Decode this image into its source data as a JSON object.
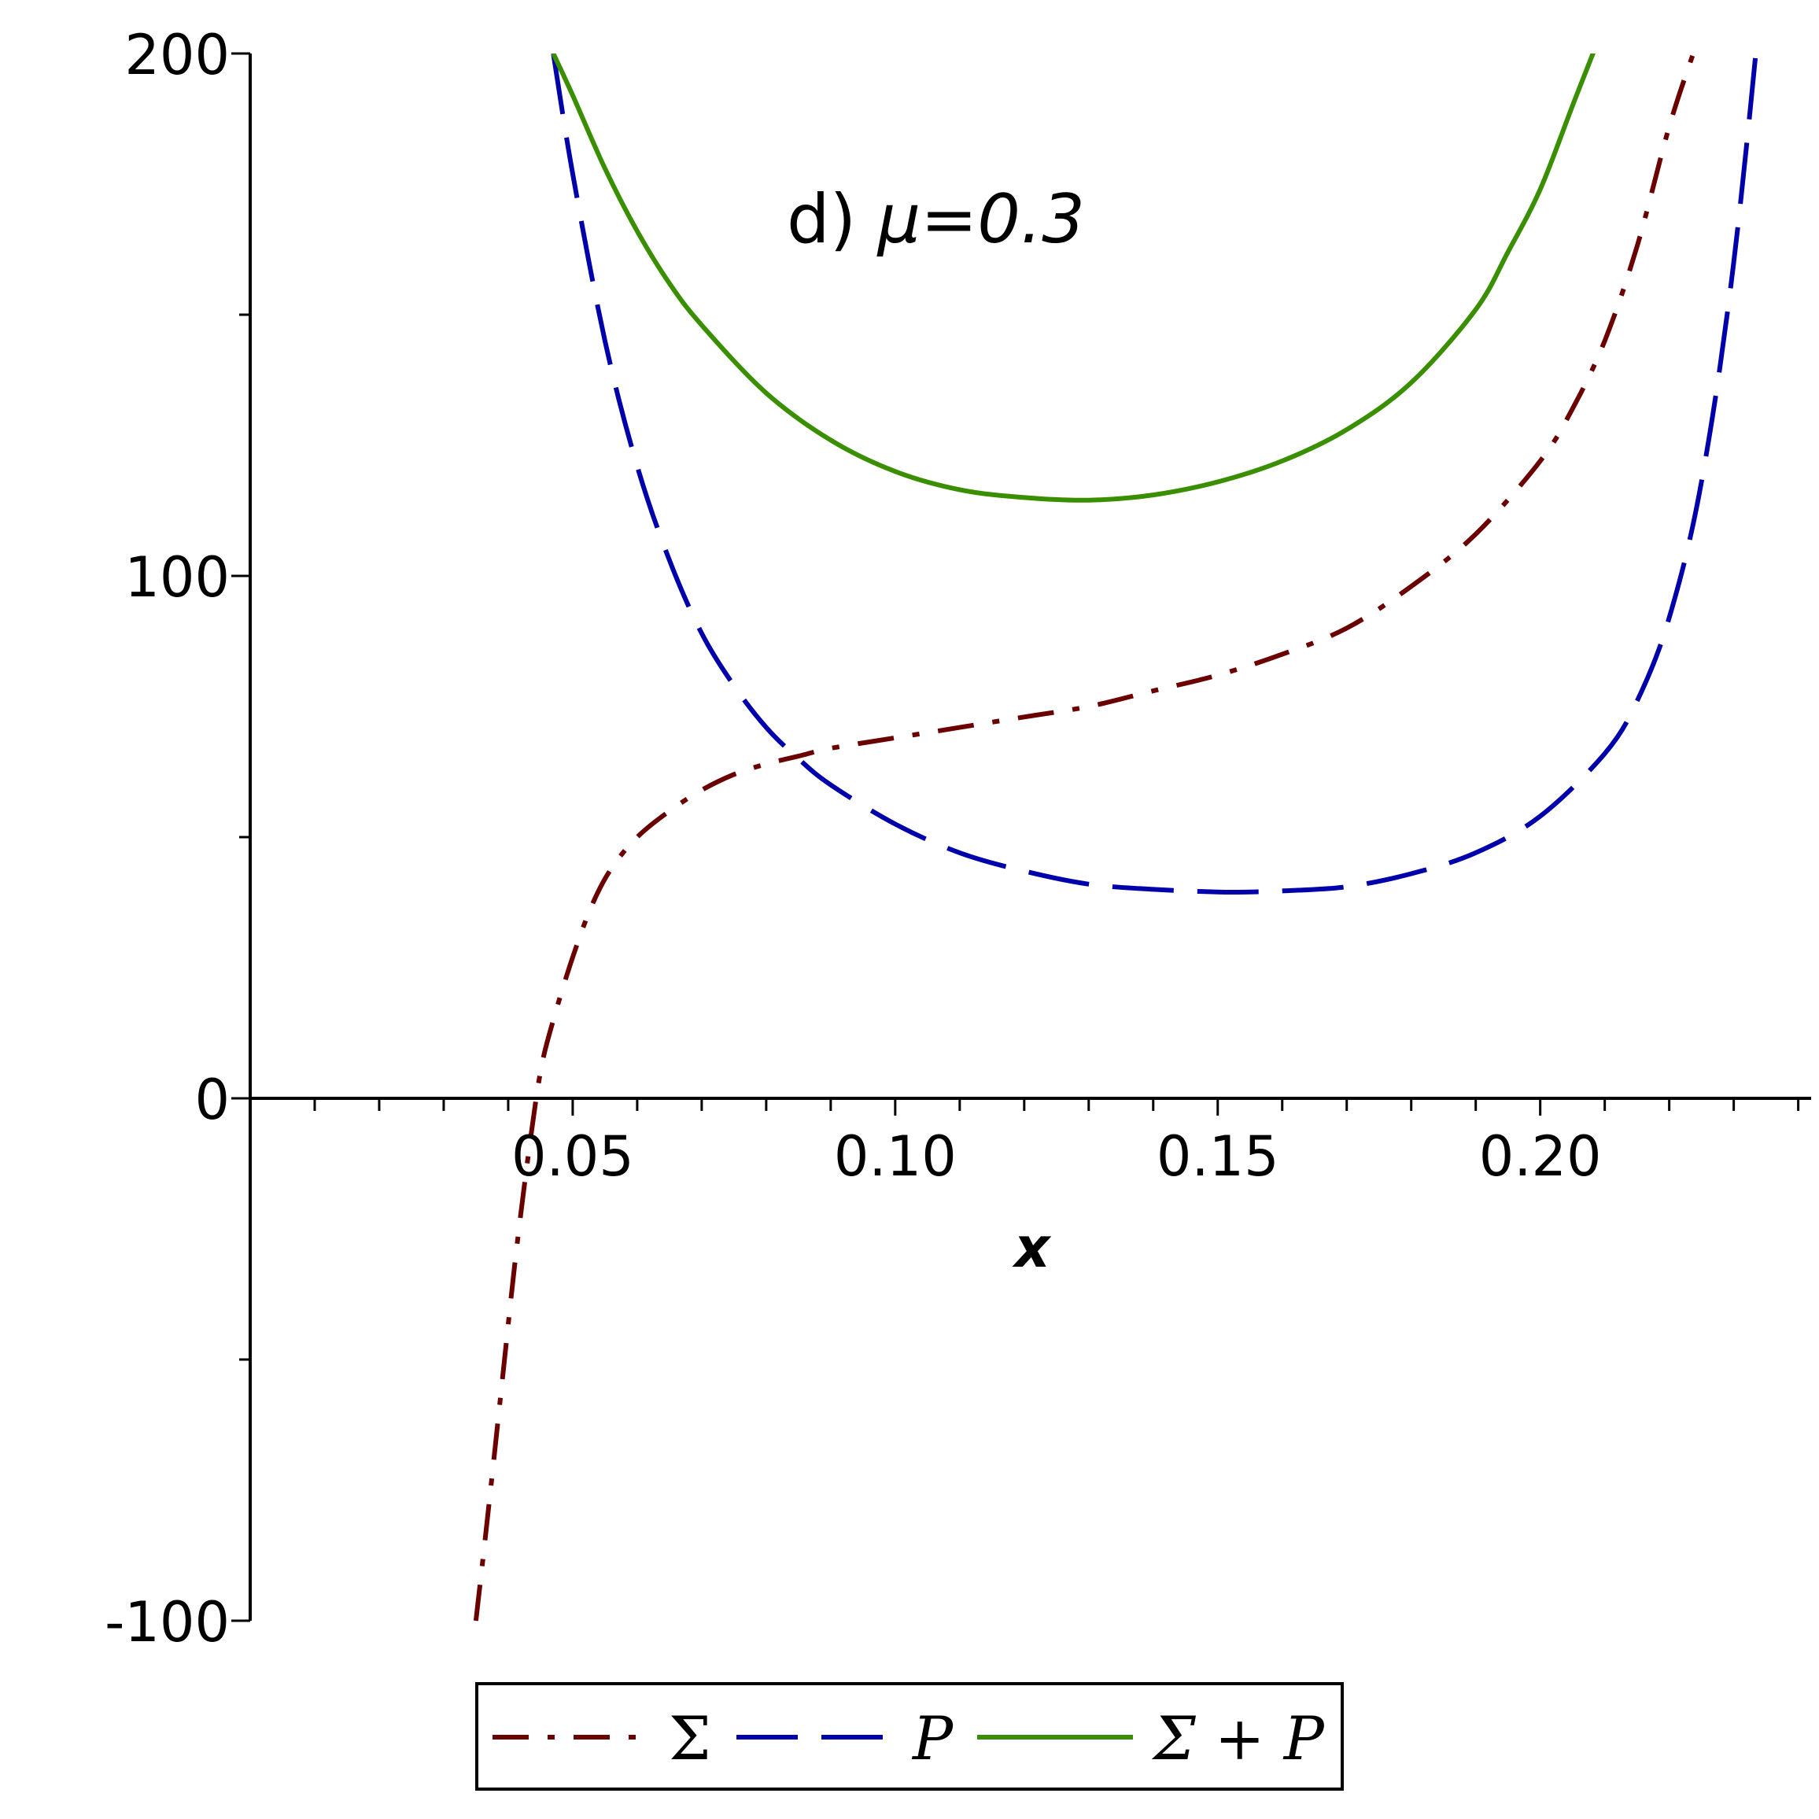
{
  "chart_data": {
    "type": "line",
    "title": "",
    "xlabel": "x",
    "ylabel": "",
    "xlim": [
      0,
      0.242
    ],
    "ylim": [
      -100,
      200
    ],
    "grid": false,
    "legend_position": "bottom",
    "x_ticks": [
      {
        "value": 0.05,
        "label": "0.05"
      },
      {
        "value": 0.1,
        "label": "0.10"
      },
      {
        "value": 0.15,
        "label": "0.15"
      },
      {
        "value": 0.2,
        "label": "0.20"
      }
    ],
    "y_ticks": [
      {
        "value": -100,
        "label": "-100"
      },
      {
        "value": 0,
        "label": "0"
      },
      {
        "value": 100,
        "label": "100"
      },
      {
        "value": 200,
        "label": "200"
      }
    ],
    "annotation": {
      "prefix": "d) ",
      "text": "μ=0.3"
    },
    "series": [
      {
        "name": "Σ",
        "color": "#6b0000",
        "dash": "dashdot",
        "x": [
          0.035,
          0.037,
          0.039,
          0.041,
          0.043,
          0.045,
          0.047,
          0.05,
          0.053,
          0.056,
          0.06,
          0.065,
          0.07,
          0.075,
          0.08,
          0.085,
          0.09,
          0.1,
          0.11,
          0.12,
          0.13,
          0.14,
          0.15,
          0.16,
          0.17,
          0.18,
          0.19,
          0.2,
          0.205,
          0.21,
          0.215,
          0.22,
          0.224
        ],
        "values": [
          -100,
          -78,
          -55,
          -32,
          -12,
          5,
          15,
          27,
          37,
          44,
          50,
          55,
          59,
          62,
          64,
          65.5,
          67,
          69,
          71,
          73,
          75,
          78,
          81,
          85,
          90,
          98,
          108,
          122,
          132,
          145,
          163,
          186,
          201
        ]
      },
      {
        "name": "P",
        "color": "#0000aa",
        "dash": "longdash",
        "x": [
          0.047,
          0.05,
          0.055,
          0.06,
          0.065,
          0.07,
          0.075,
          0.08,
          0.085,
          0.09,
          0.1,
          0.11,
          0.12,
          0.13,
          0.14,
          0.15,
          0.155,
          0.16,
          0.17,
          0.18,
          0.19,
          0.2,
          0.21,
          0.215,
          0.22,
          0.225,
          0.23,
          0.235,
          0.238
        ],
        "values": [
          200,
          177,
          145,
          121,
          103,
          89,
          79,
          71,
          65,
          60,
          52.5,
          47,
          43.5,
          41,
          40,
          39.5,
          39.5,
          39.7,
          40.5,
          43,
          47,
          54,
          66,
          76,
          92,
          118,
          160,
          220,
          260
        ]
      },
      {
        "name": "Σ + P",
        "color": "#3a8f00",
        "dash": "solid",
        "x": [
          0.047,
          0.05,
          0.055,
          0.06,
          0.065,
          0.07,
          0.08,
          0.09,
          0.1,
          0.11,
          0.12,
          0.13,
          0.14,
          0.15,
          0.16,
          0.17,
          0.18,
          0.19,
          0.195,
          0.2,
          0.205,
          0.21,
          0.213
        ],
        "values": [
          200,
          192,
          178,
          166,
          156,
          148,
          135,
          126,
          120,
          116.5,
          115,
          114.5,
          115.5,
          118,
          122,
          128,
          137,
          151,
          162,
          174,
          190,
          206,
          218
        ]
      }
    ]
  }
}
